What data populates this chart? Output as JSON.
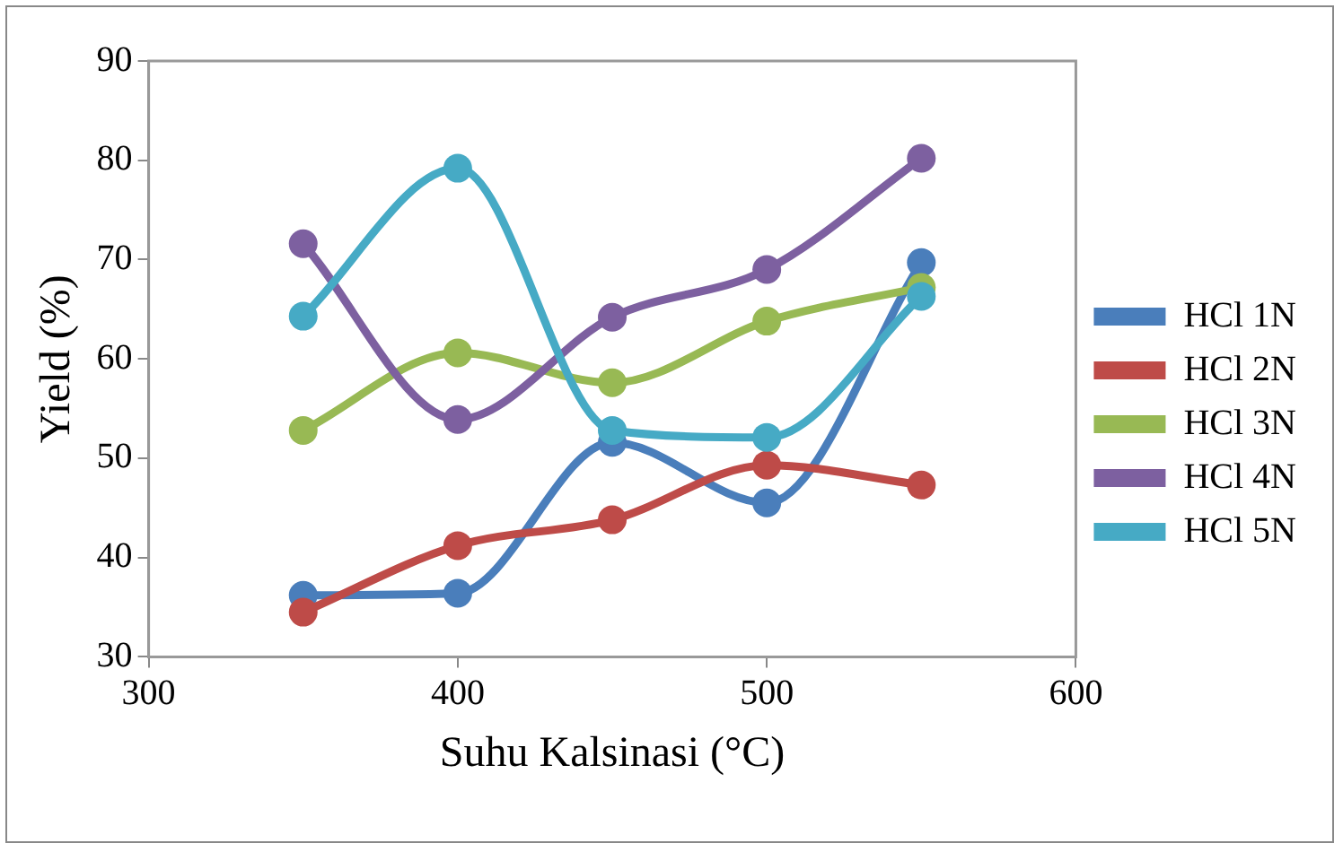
{
  "chart_data": {
    "type": "line",
    "xlabel": "Suhu Kalsinasi (°C)",
    "ylabel": "Yield (%)",
    "x": [
      350,
      400,
      450,
      500,
      550
    ],
    "xlim": [
      300,
      600
    ],
    "xticks": [
      300,
      400,
      500,
      600
    ],
    "ylim": [
      30,
      90
    ],
    "yticks": [
      30,
      40,
      50,
      60,
      70,
      80,
      90
    ],
    "grid": false,
    "legend": "right",
    "marker": "circle",
    "line_style": "solid",
    "series": [
      {
        "name": "HCl 1N",
        "color": "#4a7ebb",
        "values": [
          36.2,
          36.4,
          51.6,
          45.5,
          69.7
        ]
      },
      {
        "name": "HCl 2N",
        "color": "#be4b48",
        "values": [
          34.5,
          41.2,
          43.8,
          49.3,
          47.3
        ]
      },
      {
        "name": "HCl 3N",
        "color": "#98b954",
        "values": [
          52.8,
          60.6,
          57.6,
          63.8,
          67.2
        ]
      },
      {
        "name": "HCl 4N",
        "color": "#7d60a0",
        "values": [
          71.6,
          53.9,
          64.2,
          69.0,
          80.2
        ]
      },
      {
        "name": "HCl 5N",
        "color": "#46aac5",
        "values": [
          64.3,
          79.2,
          52.8,
          52.1,
          66.3
        ]
      }
    ]
  }
}
